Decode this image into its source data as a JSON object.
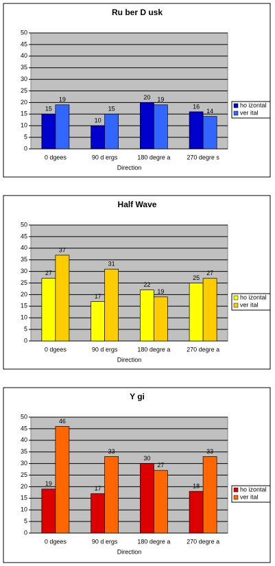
{
  "chart_data": [
    {
      "type": "bar",
      "title": "Ru ber D usk",
      "x_label": "Direction",
      "categories": [
        "0 dgees",
        "90 d ergs",
        "180 degre a",
        "270 degre s"
      ],
      "series": [
        {
          "name": "ho izontal",
          "color": "#0000cc",
          "values": [
            15,
            10,
            20,
            16
          ]
        },
        {
          "name": "ver ital",
          "color": "#3366ff",
          "values": [
            19,
            15,
            19,
            14
          ]
        }
      ],
      "ylim": [
        0,
        50
      ],
      "yticks": [
        0,
        5,
        10,
        15,
        20,
        25,
        30,
        35,
        40,
        45,
        50
      ],
      "grid": true,
      "legend": "right"
    },
    {
      "type": "bar",
      "title": "Half Wave",
      "x_label": "Direction",
      "categories": [
        "0 dgees",
        "90 d ergs",
        "180 degre a",
        "270 degre a"
      ],
      "series": [
        {
          "name": "ho izontal",
          "color": "#ffff00",
          "values": [
            27,
            17,
            22,
            25
          ]
        },
        {
          "name": "ver ital",
          "color": "#ffcc00",
          "values": [
            37,
            31,
            19,
            27
          ]
        }
      ],
      "ylim": [
        0,
        50
      ],
      "yticks": [
        0,
        5,
        10,
        15,
        20,
        25,
        30,
        35,
        40,
        45,
        50
      ],
      "grid": true,
      "legend": "right"
    },
    {
      "type": "bar",
      "title": "Y gi",
      "x_label": "Direction",
      "categories": [
        "0 dgees",
        "90 d ergs",
        "180 degre a",
        "270 degre a"
      ],
      "series": [
        {
          "name": "ho izontal",
          "color": "#dd0000",
          "values": [
            19,
            17,
            30,
            18
          ]
        },
        {
          "name": "ver ital",
          "color": "#ff6600",
          "values": [
            46,
            33,
            27,
            33
          ]
        }
      ],
      "ylim": [
        0,
        50
      ],
      "yticks": [
        0,
        5,
        10,
        15,
        20,
        25,
        30,
        35,
        40,
        45,
        50
      ],
      "grid": true,
      "legend": "right"
    }
  ]
}
